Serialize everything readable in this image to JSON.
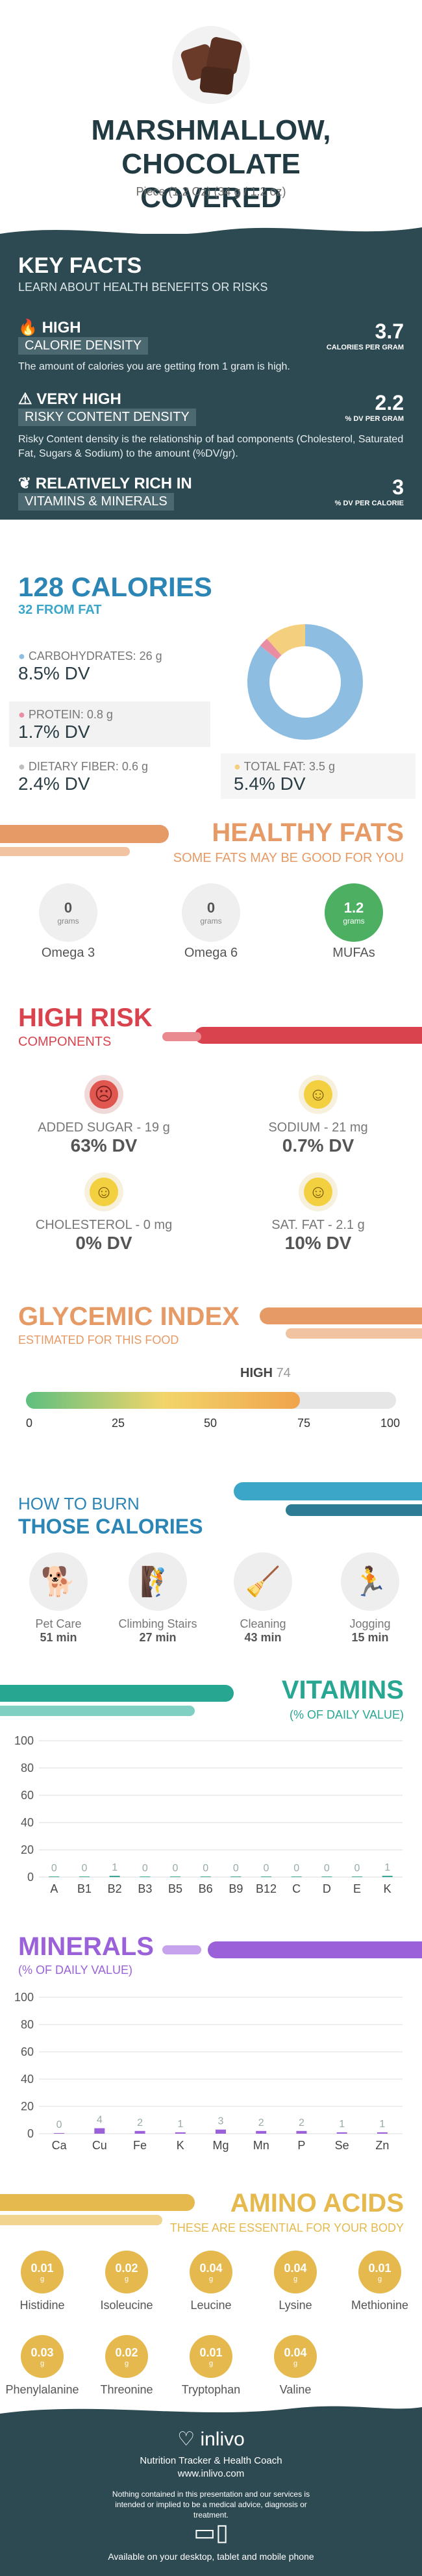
{
  "header": {
    "title_line1": "MARSHMALLOW, CHOCOLATE",
    "title_line2": "COVERED",
    "serving": "Piece (1.2 Oz) (34 g / 1.2 oz)"
  },
  "key_facts": {
    "title": "KEY FACTS",
    "subtitle": "LEARN ABOUT HEALTH BENEFITS OR RISKS",
    "items": [
      {
        "icon": "flame-icon",
        "label_top": "HIGH",
        "label_bottom": "CALORIE DENSITY",
        "value": "3.7",
        "unit": "CALORIES PER GRAM",
        "desc": "The amount of calories you are getting from 1 gram is high."
      },
      {
        "icon": "warning-icon",
        "label_top": "VERY HIGH",
        "label_bottom": "RISKY CONTENT DENSITY",
        "value": "2.2",
        "unit": "% DV PER GRAM",
        "desc": "Risky Content density is the relationship of bad components (Cholesterol, Saturated Fat, Sugars & Sodium) to the amount (%DV/gr)."
      },
      {
        "icon": "leaf-icon",
        "label_top": "RELATIVELY RICH  IN",
        "label_bottom": "VITAMINS & MINERALS",
        "value": "3",
        "unit": "% DV PER CALORIE",
        "desc": ""
      }
    ]
  },
  "calories": {
    "title": "128 CALORIES",
    "subtitle": "32 FROM FAT",
    "items": [
      {
        "label": "CARBOHYDRATES: 26 g",
        "dv": "8.5% DV",
        "color": "#8ebde2"
      },
      {
        "label": "PROTEIN: 0.8 g",
        "dv": "1.7% DV",
        "color": "#e98da3"
      },
      {
        "label": "DIETARY FIBER: 0.6 g",
        "dv": "2.4% DV",
        "color": "#bfbfbf"
      },
      {
        "label": "TOTAL FAT: 3.5 g",
        "dv": "5.4% DV",
        "color": "#f4cf7d"
      }
    ]
  },
  "chart_data": [
    {
      "type": "pie",
      "title": "",
      "categories": [
        "Carbohydrates",
        "Protein",
        "Total Fat"
      ],
      "values": [
        26,
        0.8,
        3.5
      ],
      "colors": [
        "#8ebde2",
        "#e98da3",
        "#f4cf7d"
      ]
    },
    {
      "type": "bar",
      "title": "VITAMINS",
      "subtitle": "(% OF DAILY VALUE)",
      "categories": [
        "A",
        "B1",
        "B2",
        "B3",
        "B5",
        "B6",
        "B9",
        "B12",
        "C",
        "D",
        "E",
        "K"
      ],
      "values": [
        0,
        0,
        1,
        0,
        0,
        0,
        0,
        0,
        0,
        0,
        0,
        1
      ],
      "ylim": [
        0,
        100
      ],
      "yticks": [
        0,
        20,
        40,
        60,
        80,
        100
      ]
    },
    {
      "type": "bar",
      "title": "MINERALS",
      "subtitle": "(% OF DAILY VALUE)",
      "categories": [
        "Ca",
        "Cu",
        "Fe",
        "K",
        "Mg",
        "Mn",
        "P",
        "Se",
        "Zn"
      ],
      "values": [
        0,
        4,
        2,
        1,
        3,
        2,
        2,
        1,
        1
      ],
      "ylim": [
        0,
        100
      ],
      "yticks": [
        0,
        20,
        40,
        60,
        80,
        100
      ]
    }
  ],
  "healthy_fats": {
    "title": "HEALTHY FATS",
    "subtitle": "SOME FATS MAY BE GOOD FOR YOU",
    "items": [
      {
        "value": "0",
        "unit": "grams",
        "label": "Omega 3"
      },
      {
        "value": "0",
        "unit": "grams",
        "label": "Omega 6"
      },
      {
        "value": "1.2",
        "unit": "grams",
        "label": "MUFAs"
      }
    ]
  },
  "high_risk": {
    "title": "HIGH RISK",
    "subtitle": "COMPONENTS",
    "items": [
      {
        "label": "ADDED SUGAR - 19 g",
        "dv": "63% DV",
        "face": "sad"
      },
      {
        "label": "SODIUM - 21 mg",
        "dv": "0.7% DV",
        "face": "happy"
      },
      {
        "label": "CHOLESTEROL - 0 mg",
        "dv": "0% DV",
        "face": "happy"
      },
      {
        "label": "SAT. FAT - 2.1 g",
        "dv": "10% DV",
        "face": "happy"
      }
    ]
  },
  "glycemic": {
    "title": "GLYCEMIC INDEX",
    "subtitle": "ESTIMATED FOR THIS FOOD",
    "level": "HIGH",
    "value": "74",
    "value_num": 74,
    "ticks": [
      "0",
      "25",
      "50",
      "75",
      "100"
    ]
  },
  "burn": {
    "title_line1": "HOW TO BURN",
    "title_line2": "THOSE CALORIES",
    "items": [
      {
        "label": "Pet Care",
        "time": "51 min"
      },
      {
        "label": "Climbing Stairs",
        "time": "27 min"
      },
      {
        "label": "Cleaning",
        "time": "43 min"
      },
      {
        "label": "Jogging",
        "time": "15 min"
      }
    ]
  },
  "vitamins": {
    "title": "VITAMINS",
    "subtitle": "(% OF DAILY VALUE)"
  },
  "minerals": {
    "title": "MINERALS",
    "subtitle": "(% OF DAILY VALUE)"
  },
  "amino": {
    "title": "AMINO ACIDS",
    "subtitle": "THESE ARE ESSENTIAL FOR YOUR BODY",
    "items": [
      {
        "value": "0.01",
        "unit": "g",
        "label": "Histidine"
      },
      {
        "value": "0.02",
        "unit": "g",
        "label": "Isoleucine"
      },
      {
        "value": "0.04",
        "unit": "g",
        "label": "Leucine"
      },
      {
        "value": "0.04",
        "unit": "g",
        "label": "Lysine"
      },
      {
        "value": "0.01",
        "unit": "g",
        "label": "Methionine"
      },
      {
        "value": "0.03",
        "unit": "g",
        "label": "Phenylalanine"
      },
      {
        "value": "0.02",
        "unit": "g",
        "label": "Threonine"
      },
      {
        "value": "0.01",
        "unit": "g",
        "label": "Tryptophan"
      },
      {
        "value": "0.04",
        "unit": "g",
        "label": "Valine"
      }
    ]
  },
  "footer": {
    "brand": "inlivo",
    "tagline": "Nutrition Tracker & Health Coach",
    "url": "www.inlivo.com",
    "disclaimer": "Nothing contained in this presentation and our services is intended or implied to be a medical advice, diagnosis or treatment.",
    "availability": "Available on your desktop, tablet and mobile phone"
  },
  "colors": {
    "dark": "#2d4a52",
    "teal": "#3ba6c8",
    "orange": "#e69a66",
    "red": "#d9434e",
    "purple": "#9a61d8",
    "gold": "#e5b94d"
  }
}
